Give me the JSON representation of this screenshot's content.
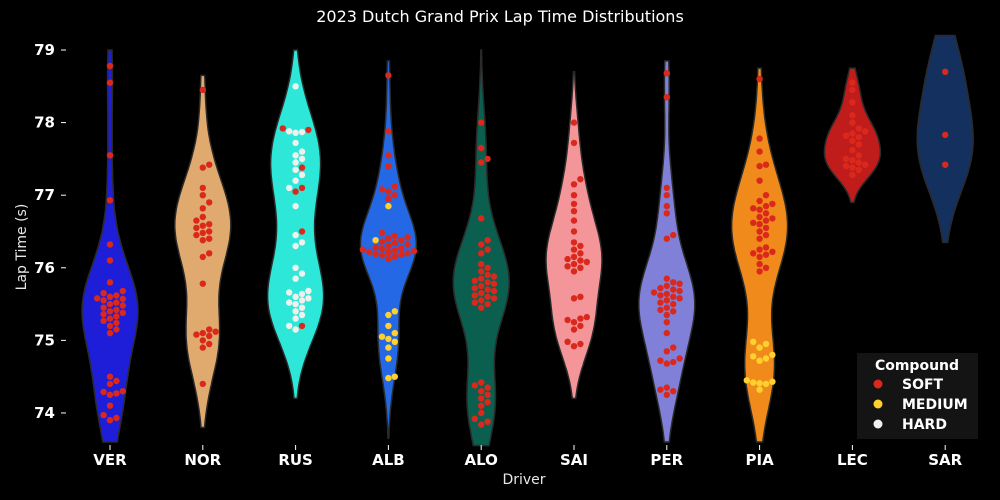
{
  "chart_data": {
    "type": "violin",
    "title": "2023 Dutch Grand Prix Lap Time Distributions",
    "xlabel": "Driver",
    "ylabel": "Lap Time (s)",
    "ylim": [
      73.55,
      79.1
    ],
    "yticks": [
      74,
      75,
      76,
      77,
      78,
      79
    ],
    "grid": false,
    "background": "#000000",
    "text_color": "#ffffff",
    "legend": {
      "title": "Compound",
      "placement": "lower-right",
      "items": [
        {
          "label": "SOFT",
          "color": "#da291c"
        },
        {
          "label": "MEDIUM",
          "color": "#ffd12e"
        },
        {
          "label": "HARD",
          "color": "#f0f0ec"
        }
      ]
    },
    "drivers": [
      {
        "name": "VER",
        "color": "#1e1ed8",
        "range": [
          73.6,
          79.0
        ],
        "soft": [
          78.78,
          78.55,
          77.55,
          76.93,
          76.32,
          76.1,
          75.8,
          75.68,
          75.65,
          75.62,
          75.6,
          75.58,
          75.57,
          75.55,
          75.52,
          75.5,
          75.48,
          75.45,
          75.42,
          75.4,
          75.38,
          75.36,
          75.33,
          75.3,
          75.27,
          75.24,
          75.2,
          75.15,
          75.1,
          74.5,
          74.44,
          74.4,
          74.3,
          74.29,
          74.27,
          74.25,
          74.1,
          73.97,
          73.93,
          73.9
        ],
        "medium": [],
        "hard": []
      },
      {
        "name": "NOR",
        "color": "#e0aa6e",
        "range": [
          73.8,
          78.65
        ],
        "soft": [
          78.45,
          77.42,
          77.38,
          77.1,
          77.0,
          76.9,
          76.82,
          76.7,
          76.65,
          76.6,
          76.58,
          76.55,
          76.5,
          76.48,
          76.45,
          76.4,
          76.38,
          76.2,
          76.15,
          75.78,
          75.15,
          75.12,
          75.1,
          75.08,
          75.06,
          75.0,
          74.95,
          74.9,
          74.4
        ],
        "medium": [],
        "hard": []
      },
      {
        "name": "RUS",
        "color": "#2de8d8",
        "range": [
          74.2,
          79.0
        ],
        "soft": [
          77.92,
          77.9,
          77.38,
          77.1,
          77.05,
          76.5,
          75.2
        ],
        "medium": [],
        "hard": [
          78.5,
          77.88,
          77.87,
          77.86,
          77.72,
          77.6,
          77.55,
          77.5,
          77.45,
          77.35,
          77.28,
          77.2,
          77.1,
          76.85,
          76.45,
          76.35,
          76.3,
          76.0,
          75.92,
          75.85,
          75.68,
          75.66,
          75.64,
          75.6,
          75.58,
          75.55,
          75.52,
          75.5,
          75.45,
          75.4,
          75.35,
          75.3,
          75.2,
          75.15
        ]
      },
      {
        "name": "ALB",
        "color": "#2568e6",
        "range": [
          73.65,
          78.85
        ],
        "soft": [
          78.65,
          77.88,
          77.55,
          77.4,
          77.12,
          77.08,
          77.05,
          77.0,
          76.95,
          76.48,
          76.44,
          76.42,
          76.4,
          76.38,
          76.36,
          76.34,
          76.32,
          76.3,
          76.28,
          76.27,
          76.26,
          76.25,
          76.24,
          76.23,
          76.22,
          76.21,
          76.2,
          76.19,
          76.18,
          76.17,
          76.15,
          76.12
        ],
        "medium": [
          76.85,
          76.38,
          75.4,
          75.35,
          75.2,
          75.1,
          75.05,
          75.02,
          74.98,
          74.9,
          74.75,
          74.5,
          74.48
        ],
        "hard": []
      },
      {
        "name": "ALO",
        "color": "#0b5f4f",
        "range": [
          73.55,
          79.0
        ],
        "soft": [
          78.0,
          77.65,
          77.5,
          77.45,
          76.68,
          76.38,
          76.32,
          76.25,
          76.2,
          76.05,
          76.0,
          75.95,
          75.9,
          75.88,
          75.85,
          75.82,
          75.8,
          75.78,
          75.75,
          75.72,
          75.7,
          75.68,
          75.65,
          75.62,
          75.6,
          75.58,
          75.55,
          75.52,
          75.5,
          75.45,
          74.42,
          74.38,
          74.35,
          74.3,
          74.25,
          74.2,
          74.15,
          74.1,
          74.0,
          73.92,
          73.88,
          73.84
        ],
        "medium": [],
        "hard": []
      },
      {
        "name": "SAI",
        "color": "#f4959a",
        "range": [
          74.2,
          78.7
        ],
        "soft": [
          78.0,
          77.72,
          77.22,
          77.15,
          77.0,
          76.88,
          76.78,
          76.65,
          76.5,
          76.35,
          76.3,
          76.25,
          76.2,
          76.15,
          76.12,
          76.1,
          76.08,
          76.05,
          76.02,
          76.0,
          75.95,
          75.6,
          75.58,
          75.32,
          75.3,
          75.28,
          75.25,
          75.2,
          75.15,
          74.98,
          74.95,
          74.92
        ],
        "medium": [],
        "hard": []
      },
      {
        "name": "PER",
        "color": "#8080d8",
        "range": [
          73.6,
          78.85
        ],
        "soft": [
          78.68,
          78.35,
          77.1,
          77.0,
          76.85,
          76.75,
          76.45,
          76.4,
          75.85,
          75.8,
          75.78,
          75.75,
          75.72,
          75.7,
          75.68,
          75.66,
          75.64,
          75.62,
          75.6,
          75.58,
          75.55,
          75.52,
          75.5,
          75.45,
          75.42,
          75.4,
          75.35,
          75.25,
          75.1,
          74.9,
          74.85,
          74.75,
          74.72,
          74.7,
          74.68,
          74.35,
          74.32,
          74.3,
          74.25
        ],
        "medium": [],
        "hard": []
      },
      {
        "name": "PIA",
        "color": "#f08a1a",
        "range": [
          73.6,
          78.75
        ],
        "soft": [
          78.6,
          77.78,
          77.6,
          77.42,
          77.4,
          77.2,
          77.0,
          76.92,
          76.88,
          76.85,
          76.82,
          76.8,
          76.75,
          76.7,
          76.68,
          76.65,
          76.62,
          76.6,
          76.55,
          76.5,
          76.45,
          76.4,
          76.28,
          76.25,
          76.22,
          76.2,
          76.18,
          76.15,
          76.05,
          76.0,
          75.95
        ],
        "medium": [
          74.98,
          74.95,
          74.9,
          74.8,
          74.78,
          74.75,
          74.72,
          74.45,
          74.43,
          74.42,
          74.41,
          74.4,
          74.32
        ],
        "hard": []
      },
      {
        "name": "LEC",
        "color": "#c01c1c",
        "range": [
          76.9,
          78.75
        ],
        "soft": [
          78.55,
          78.45,
          78.28,
          78.1,
          78.0,
          77.92,
          77.88,
          77.85,
          77.82,
          77.8,
          77.75,
          77.7,
          77.62,
          77.55,
          77.5,
          77.48,
          77.45,
          77.42,
          77.4,
          77.38,
          77.35,
          77.28
        ],
        "medium": [],
        "hard": []
      },
      {
        "name": "SAR",
        "color": "#14305e",
        "range": [
          76.35,
          79.2
        ],
        "soft": [
          78.7,
          77.83,
          77.42
        ],
        "medium": [],
        "hard": []
      }
    ]
  }
}
